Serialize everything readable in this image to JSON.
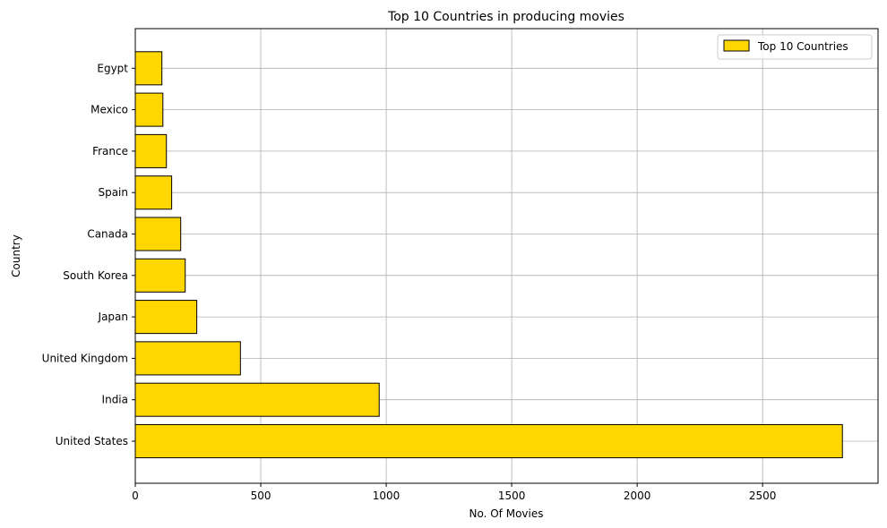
{
  "chart_data": {
    "type": "bar",
    "orientation": "horizontal",
    "title": "Top 10 Countries in producing movies",
    "xlabel": "No. Of Movies",
    "ylabel": "Country",
    "categories": [
      "United States",
      "India",
      "United Kingdom",
      "Japan",
      "South Korea",
      "Canada",
      "Spain",
      "France",
      "Mexico",
      "Egypt"
    ],
    "series": [
      {
        "name": "Top 10 Countries",
        "values": [
          2818,
          972,
          419,
          245,
          199,
          181,
          145,
          124,
          110,
          106
        ],
        "color": "#FFD700",
        "edge_color": "#000000"
      }
    ],
    "xlim": [
      0,
      2960
    ],
    "xticks": [
      0,
      500,
      1000,
      1500,
      2000,
      2500
    ],
    "grid": true,
    "legend_position": "top-right"
  }
}
